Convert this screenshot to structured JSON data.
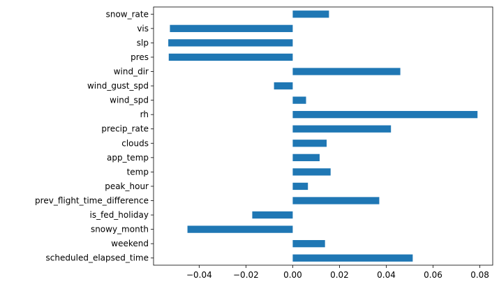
{
  "chart_data": {
    "type": "bar",
    "orientation": "horizontal",
    "title": "",
    "xlabel": "",
    "ylabel": "",
    "categories": [
      "scheduled_elapsed_time",
      "weekend",
      "snowy_month",
      "is_fed_holiday",
      "prev_flight_time_difference",
      "peak_hour",
      "temp",
      "app_temp",
      "clouds",
      "precip_rate",
      "rh",
      "wind_spd",
      "wind_gust_spd",
      "wind_dir",
      "pres",
      "slp",
      "vis",
      "snow_rate"
    ],
    "values": [
      0.0513,
      0.0138,
      -0.045,
      -0.0173,
      0.037,
      0.0065,
      0.0162,
      0.0115,
      0.0145,
      0.042,
      0.079,
      0.0057,
      -0.008,
      0.046,
      -0.053,
      -0.0532,
      -0.0525,
      0.0155
    ],
    "xlim": [
      -0.0595,
      0.0855
    ],
    "xticks": [
      -0.04,
      -0.02,
      0.0,
      0.02,
      0.04,
      0.06,
      0.08
    ],
    "xtick_labels": [
      "−0.04",
      "−0.02",
      "0.00",
      "0.02",
      "0.04",
      "0.06",
      "0.08"
    ],
    "grid": false,
    "legend": "none",
    "bar_color": "#1f77b4"
  }
}
